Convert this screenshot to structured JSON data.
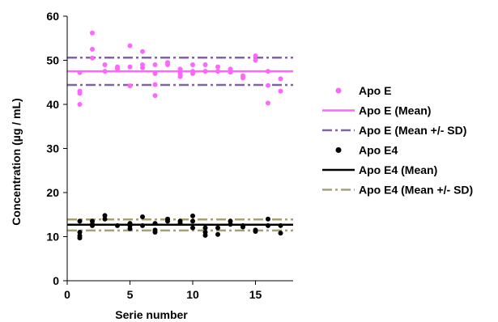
{
  "chart_data": {
    "type": "scatter",
    "title": "",
    "xlabel": "Serie number",
    "ylabel": "Concentration (µg / mL)",
    "xlim": [
      0,
      18
    ],
    "ylim": [
      0,
      60
    ],
    "x_ticks": [
      0,
      5,
      10,
      15
    ],
    "y_ticks": [
      0,
      10,
      20,
      30,
      40,
      50,
      60
    ],
    "grid": false,
    "legend_position": "right",
    "series": [
      {
        "name": "Apo E",
        "kind": "points",
        "color": "#FF66FF",
        "points": [
          [
            1,
            47.2
          ],
          [
            1,
            43.0
          ],
          [
            1,
            42.5
          ],
          [
            1,
            40.0
          ],
          [
            2,
            56.2
          ],
          [
            2,
            52.5
          ],
          [
            2,
            50.5
          ],
          [
            3,
            49.0
          ],
          [
            3,
            47.5
          ],
          [
            4,
            48.5
          ],
          [
            4,
            48.0
          ],
          [
            5,
            53.3
          ],
          [
            5,
            48.5
          ],
          [
            5,
            44.2
          ],
          [
            6,
            52.0
          ],
          [
            6,
            49.0
          ],
          [
            6,
            48.3
          ],
          [
            7,
            49.0
          ],
          [
            7,
            47.0
          ],
          [
            7,
            44.5
          ],
          [
            7,
            42.0
          ],
          [
            8,
            49.5
          ],
          [
            8,
            49.0
          ],
          [
            9,
            48.0
          ],
          [
            9,
            47.0
          ],
          [
            9,
            46.3
          ],
          [
            10,
            49.0
          ],
          [
            10,
            47.5
          ],
          [
            10,
            47.0
          ],
          [
            11,
            49.0
          ],
          [
            11,
            47.5
          ],
          [
            12,
            48.5
          ],
          [
            12,
            47.5
          ],
          [
            13,
            48.0
          ],
          [
            13,
            47.3
          ],
          [
            14,
            46.5
          ],
          [
            14,
            46.0
          ],
          [
            15,
            51.0
          ],
          [
            15,
            50.0
          ],
          [
            16,
            47.5
          ],
          [
            16,
            44.3
          ],
          [
            16,
            40.3
          ],
          [
            17,
            45.8
          ],
          [
            17,
            43.0
          ]
        ]
      },
      {
        "name": "Apo E (Mean)",
        "kind": "hline",
        "y": 47.5,
        "color": "#FF66FF",
        "style": "solid"
      },
      {
        "name": "Apo E (Mean +/- SD)",
        "kind": "hline",
        "y": [
          50.6,
          44.4
        ],
        "color": "#8064A2",
        "style": "dashdot"
      },
      {
        "name": "Apo E4",
        "kind": "points",
        "color": "#000000",
        "points": [
          [
            1,
            13.5
          ],
          [
            1,
            11.0
          ],
          [
            1,
            10.2
          ],
          [
            1,
            9.7
          ],
          [
            2,
            13.5
          ],
          [
            2,
            12.8
          ],
          [
            2,
            12.5
          ],
          [
            3,
            14.8
          ],
          [
            3,
            14.0
          ],
          [
            4,
            12.5
          ],
          [
            5,
            13.0
          ],
          [
            5,
            12.5
          ],
          [
            5,
            11.8
          ],
          [
            6,
            14.5
          ],
          [
            6,
            12.5
          ],
          [
            7,
            13.0
          ],
          [
            7,
            11.5
          ],
          [
            7,
            11.0
          ],
          [
            8,
            14.0
          ],
          [
            8,
            13.5
          ],
          [
            9,
            13.5
          ],
          [
            9,
            13.0
          ],
          [
            10,
            14.7
          ],
          [
            10,
            13.5
          ],
          [
            10,
            12.0
          ],
          [
            11,
            12.0
          ],
          [
            11,
            11.0
          ],
          [
            11,
            10.3
          ],
          [
            12,
            12.0
          ],
          [
            12,
            10.5
          ],
          [
            13,
            13.5
          ],
          [
            13,
            12.8
          ],
          [
            14,
            12.5
          ],
          [
            14,
            12.2
          ],
          [
            15,
            11.5
          ],
          [
            15,
            11.2
          ],
          [
            16,
            14.0
          ],
          [
            16,
            12.5
          ],
          [
            17,
            12.5
          ],
          [
            17,
            10.8
          ]
        ]
      },
      {
        "name": "Apo E4 (Mean)",
        "kind": "hline",
        "y": 12.7,
        "color": "#000000",
        "style": "solid"
      },
      {
        "name": "Apo E4 (Mean +/- SD)",
        "kind": "hline",
        "y": [
          13.9,
          11.4
        ],
        "color": "#A89F72",
        "style": "dashdot"
      }
    ]
  }
}
